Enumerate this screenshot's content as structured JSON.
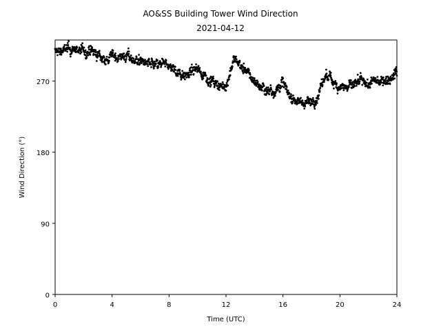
{
  "chart_data": {
    "type": "scatter",
    "title": "AO&SS Building Tower Wind Direction",
    "subtitle": "2021-04-12",
    "xlabel": "Time (UTC)",
    "ylabel": "Wind Direction (°)",
    "xlim": [
      0,
      24
    ],
    "ylim": [
      0,
      322
    ],
    "xticks": [
      0,
      4,
      8,
      12,
      16,
      20,
      24
    ],
    "xtick_labels": [
      "0",
      "4",
      "8",
      "12",
      "16",
      "20",
      "24"
    ],
    "yticks": [
      0,
      90,
      180,
      270
    ],
    "ytick_labels": [
      "0",
      "90",
      "180",
      "270"
    ],
    "grid": false,
    "marker_color": "#000000",
    "trend": {
      "x": [
        0,
        0.5,
        1.0,
        1.5,
        2.0,
        2.5,
        3.0,
        3.3,
        3.7,
        4.0,
        4.5,
        5.0,
        5.5,
        6.0,
        6.5,
        7.0,
        7.5,
        8.0,
        8.5,
        9.0,
        9.5,
        10.0,
        10.5,
        11.0,
        11.5,
        12.0,
        12.3,
        12.6,
        13.0,
        13.5,
        14.0,
        14.5,
        15.0,
        15.5,
        16.0,
        16.5,
        17.0,
        17.5,
        18.0,
        18.5,
        19.0,
        19.5,
        20.0,
        20.5,
        21.0,
        21.5,
        22.0,
        22.5,
        23.0,
        23.5,
        24.0
      ],
      "y": [
        307,
        309,
        310,
        310,
        308,
        307,
        303,
        300,
        297,
        302,
        302,
        301,
        298,
        295,
        292,
        289,
        290,
        290,
        283,
        279,
        281,
        285,
        278,
        270,
        262,
        264,
        282,
        298,
        290,
        280,
        270,
        262,
        258,
        259,
        268,
        250,
        245,
        243,
        243,
        252,
        278,
        270,
        264,
        262,
        265,
        268,
        266,
        270,
        272,
        274,
        283
      ]
    },
    "scatter_spread": 7,
    "points_per_hour": 60
  }
}
